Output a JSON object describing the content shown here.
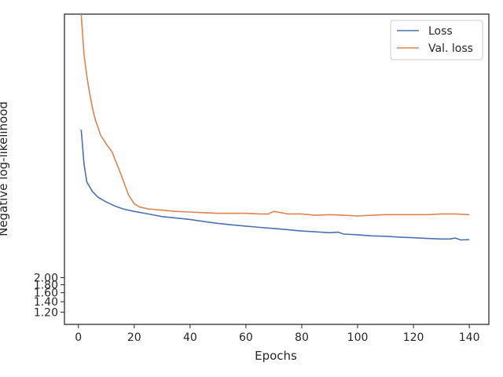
{
  "chart_data": {
    "type": "line",
    "title": "",
    "xlabel": "Epochs",
    "ylabel": "Negative log-likelihood",
    "xlim": [
      -5,
      147
    ],
    "ylim": [
      1.0,
      100.0
    ],
    "y_scale": "log",
    "grid": false,
    "legend_position": "top-right",
    "x_ticks": [
      0,
      20,
      40,
      60,
      80,
      100,
      120,
      140
    ],
    "y_tick_labels": [
      "1.20",
      "1.40",
      "1.60",
      "1.80",
      "2.00"
    ],
    "colors": {
      "loss": "#4c72b0",
      "val_loss": "#dd8452"
    },
    "series": [
      {
        "name": "Loss",
        "x": [
          1,
          2,
          3,
          5,
          7,
          10,
          13,
          16,
          20,
          25,
          30,
          35,
          40,
          45,
          50,
          55,
          60,
          65,
          70,
          75,
          80,
          85,
          90,
          93,
          95,
          100,
          105,
          110,
          115,
          120,
          125,
          130,
          133,
          135,
          137,
          140
        ],
        "y": [
          18.0,
          10.8,
          8.3,
          7.2,
          6.6,
          6.15,
          5.8,
          5.55,
          5.35,
          5.15,
          4.95,
          4.85,
          4.75,
          4.6,
          4.48,
          4.38,
          4.3,
          4.22,
          4.15,
          4.08,
          4.0,
          3.95,
          3.9,
          3.93,
          3.82,
          3.78,
          3.72,
          3.7,
          3.65,
          3.62,
          3.58,
          3.55,
          3.55,
          3.6,
          3.5,
          3.52
        ]
      },
      {
        "name": "Val. loss",
        "x": [
          1,
          2,
          3,
          4,
          5,
          6,
          8,
          10,
          12,
          15,
          18,
          20,
          22,
          25,
          30,
          35,
          40,
          45,
          50,
          55,
          60,
          65,
          68,
          70,
          75,
          80,
          85,
          90,
          95,
          100,
          105,
          110,
          115,
          120,
          125,
          130,
          135,
          140
        ],
        "y": [
          100.0,
          55.0,
          40.0,
          31.0,
          25.0,
          21.0,
          16.5,
          14.5,
          13.0,
          9.5,
          6.8,
          6.0,
          5.7,
          5.55,
          5.45,
          5.35,
          5.3,
          5.25,
          5.2,
          5.2,
          5.2,
          5.15,
          5.15,
          5.35,
          5.15,
          5.15,
          5.05,
          5.1,
          5.05,
          5.0,
          5.05,
          5.1,
          5.1,
          5.1,
          5.1,
          5.15,
          5.15,
          5.1
        ]
      }
    ]
  }
}
